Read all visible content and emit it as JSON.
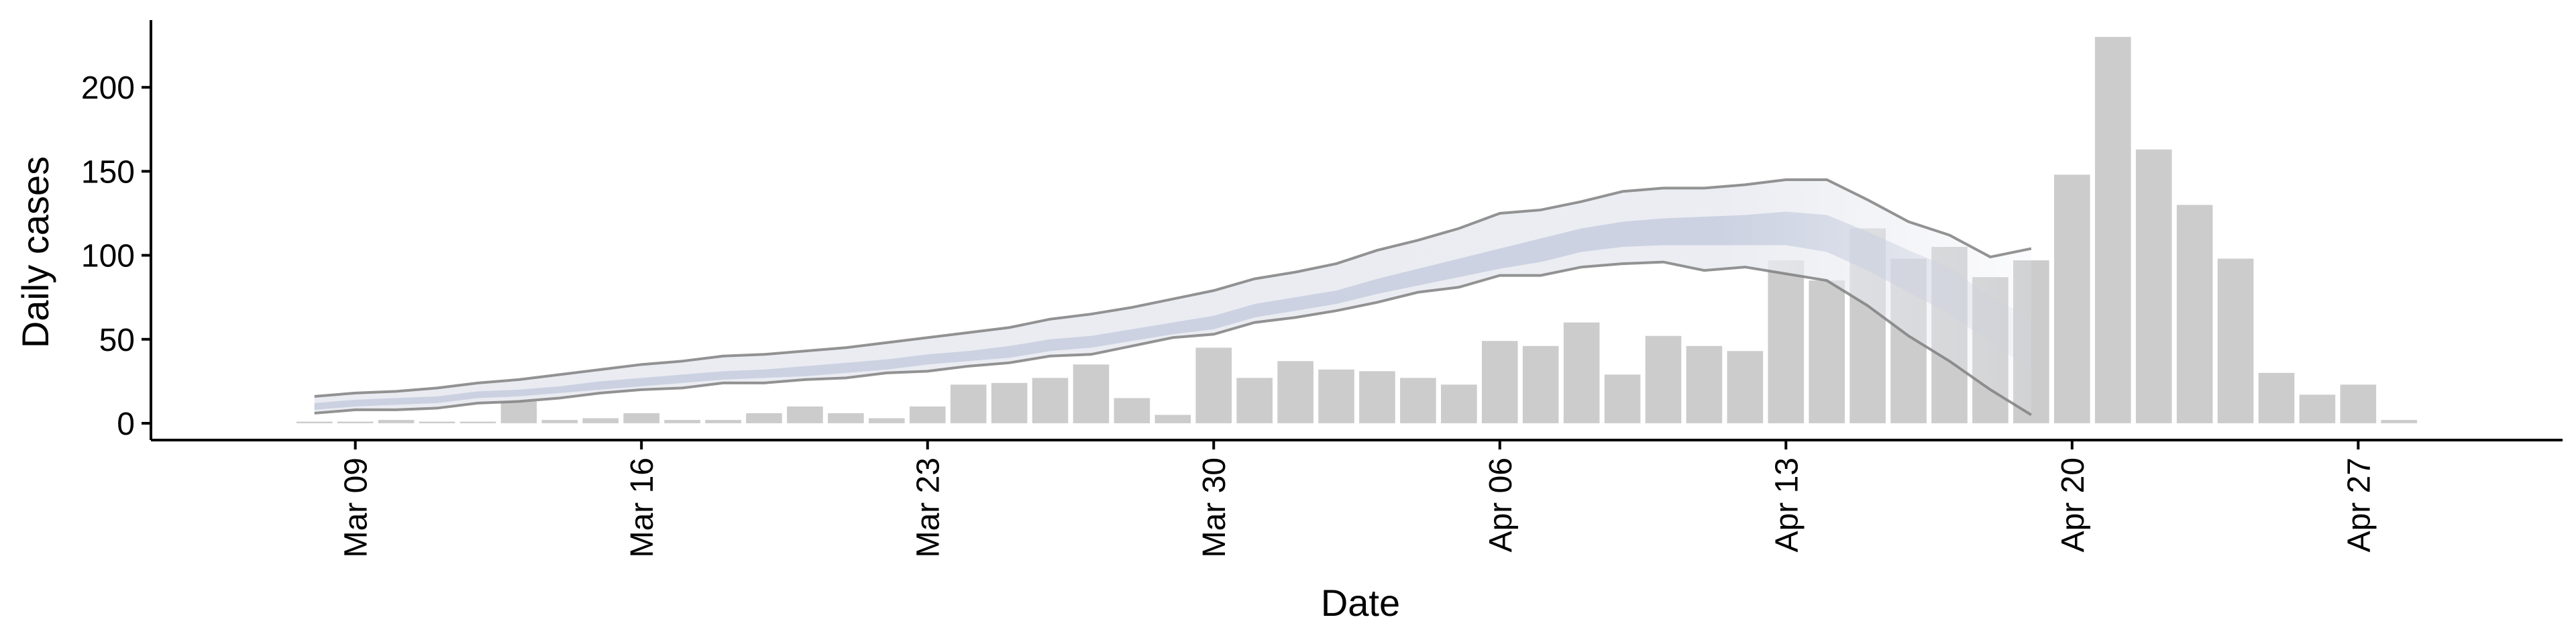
{
  "chart_data": {
    "type": "bar",
    "xlabel": "Date",
    "ylabel": "Daily cases",
    "ylim": [
      -10,
      240
    ],
    "xlim": [
      "2020-03-04",
      "2020-05-02"
    ],
    "x_ticks": [
      {
        "date": "2020-03-09",
        "label": "Mar 09"
      },
      {
        "date": "2020-03-16",
        "label": "Mar 16"
      },
      {
        "date": "2020-03-23",
        "label": "Mar 23"
      },
      {
        "date": "2020-03-30",
        "label": "Mar 30"
      },
      {
        "date": "2020-04-06",
        "label": "Apr 06"
      },
      {
        "date": "2020-04-13",
        "label": "Apr 13"
      },
      {
        "date": "2020-04-20",
        "label": "Apr 20"
      },
      {
        "date": "2020-04-27",
        "label": "Apr 27"
      }
    ],
    "y_ticks": [
      0,
      50,
      100,
      150,
      200
    ],
    "grid": false,
    "legend": "none",
    "bars": {
      "color": "#cccccc",
      "dates": [
        "2020-03-08",
        "2020-03-09",
        "2020-03-10",
        "2020-03-11",
        "2020-03-12",
        "2020-03-13",
        "2020-03-14",
        "2020-03-15",
        "2020-03-16",
        "2020-03-17",
        "2020-03-18",
        "2020-03-19",
        "2020-03-20",
        "2020-03-21",
        "2020-03-22",
        "2020-03-23",
        "2020-03-24",
        "2020-03-25",
        "2020-03-26",
        "2020-03-27",
        "2020-03-28",
        "2020-03-29",
        "2020-03-30",
        "2020-03-31",
        "2020-04-01",
        "2020-04-02",
        "2020-04-03",
        "2020-04-04",
        "2020-04-05",
        "2020-04-06",
        "2020-04-07",
        "2020-04-08",
        "2020-04-09",
        "2020-04-10",
        "2020-04-11",
        "2020-04-12",
        "2020-04-13",
        "2020-04-14",
        "2020-04-15",
        "2020-04-16",
        "2020-04-17",
        "2020-04-18",
        "2020-04-19",
        "2020-04-20",
        "2020-04-21",
        "2020-04-22",
        "2020-04-23",
        "2020-04-24",
        "2020-04-25",
        "2020-04-26",
        "2020-04-27",
        "2020-04-28"
      ],
      "values": [
        1,
        1,
        2,
        1,
        1,
        13,
        2,
        3,
        6,
        2,
        2,
        6,
        10,
        6,
        3,
        10,
        23,
        24,
        27,
        35,
        15,
        5,
        45,
        27,
        37,
        32,
        31,
        27,
        23,
        49,
        46,
        60,
        29,
        52,
        46,
        43,
        97,
        85,
        116,
        98,
        105,
        87,
        97,
        148,
        230,
        163,
        130,
        98,
        30,
        17,
        23,
        2
      ]
    },
    "estimate": {
      "dates": [
        "2020-03-08",
        "2020-03-09",
        "2020-03-10",
        "2020-03-11",
        "2020-03-12",
        "2020-03-13",
        "2020-03-14",
        "2020-03-15",
        "2020-03-16",
        "2020-03-17",
        "2020-03-18",
        "2020-03-19",
        "2020-03-20",
        "2020-03-21",
        "2020-03-22",
        "2020-03-23",
        "2020-03-24",
        "2020-03-25",
        "2020-03-26",
        "2020-03-27",
        "2020-03-28",
        "2020-03-29",
        "2020-03-30",
        "2020-03-31",
        "2020-04-01",
        "2020-04-02",
        "2020-04-03",
        "2020-04-04",
        "2020-04-05",
        "2020-04-06",
        "2020-04-07",
        "2020-04-08",
        "2020-04-09",
        "2020-04-10",
        "2020-04-11",
        "2020-04-12",
        "2020-04-13",
        "2020-04-14",
        "2020-04-15",
        "2020-04-16",
        "2020-04-17",
        "2020-04-18",
        "2020-04-19"
      ],
      "outer_upper": [
        16,
        18,
        19,
        21,
        24,
        26,
        29,
        32,
        35,
        37,
        40,
        41,
        43,
        45,
        48,
        51,
        54,
        57,
        62,
        65,
        69,
        74,
        79,
        86,
        90,
        95,
        103,
        109,
        116,
        125,
        127,
        132,
        138,
        140,
        140,
        142,
        145,
        145,
        133,
        120,
        112,
        99,
        104
      ],
      "outer_lower": [
        6,
        8,
        8,
        9,
        12,
        13,
        15,
        18,
        20,
        21,
        24,
        24,
        26,
        27,
        30,
        31,
        34,
        36,
        40,
        41,
        46,
        51,
        53,
        60,
        63,
        67,
        72,
        78,
        81,
        88,
        88,
        93,
        95,
        96,
        91,
        93,
        89,
        85,
        70,
        52,
        37,
        20,
        5
      ],
      "inner_upper": [
        12,
        14,
        15,
        16,
        19,
        20,
        22,
        25,
        27,
        29,
        31,
        32,
        34,
        36,
        38,
        41,
        43,
        46,
        50,
        52,
        56,
        60,
        64,
        71,
        75,
        79,
        86,
        92,
        98,
        104,
        110,
        116,
        120,
        122,
        123,
        124,
        126,
        124,
        114,
        103,
        93,
        75,
        63
      ],
      "inner_lower": [
        8,
        10,
        11,
        12,
        15,
        16,
        18,
        20,
        22,
        24,
        26,
        27,
        28,
        30,
        32,
        35,
        37,
        39,
        43,
        45,
        49,
        53,
        56,
        63,
        67,
        71,
        77,
        82,
        87,
        92,
        96,
        102,
        105,
        106,
        106,
        106,
        106,
        102,
        91,
        78,
        65,
        48,
        32
      ],
      "outer_color": "#e9ebf1",
      "inner_color": "#cbd1e1",
      "line_color": "#808080"
    }
  }
}
